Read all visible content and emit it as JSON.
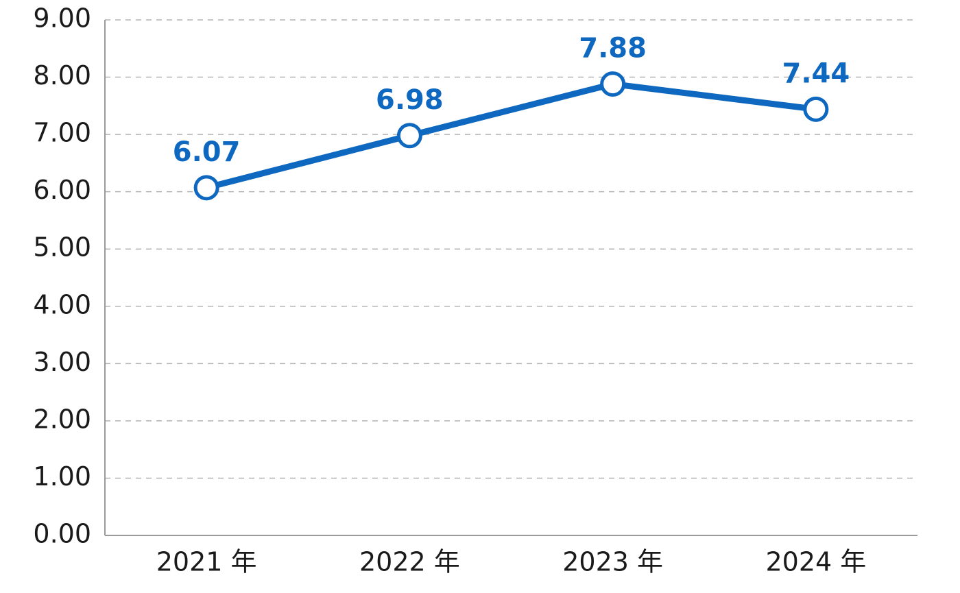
{
  "chart_data": {
    "type": "line",
    "title": "",
    "xlabel": "",
    "ylabel": "",
    "categories": [
      "2021 年",
      "2022 年",
      "2023 年",
      "2024 年"
    ],
    "series": [
      {
        "values": [
          6.07,
          6.98,
          7.88,
          7.44
        ],
        "value_labels": [
          "6.07",
          "6.98",
          "7.88",
          "7.44"
        ]
      }
    ],
    "ylim": [
      0,
      9
    ],
    "y_ticks": [
      "0.00",
      "1.00",
      "2.00",
      "3.00",
      "4.00",
      "5.00",
      "6.00",
      "7.00",
      "8.00",
      "9.00"
    ],
    "grid": true,
    "legend": "none",
    "colors": {
      "series": "#0e68c0",
      "grid": "#b3b3b3",
      "axis": "#9a9a9a"
    }
  }
}
